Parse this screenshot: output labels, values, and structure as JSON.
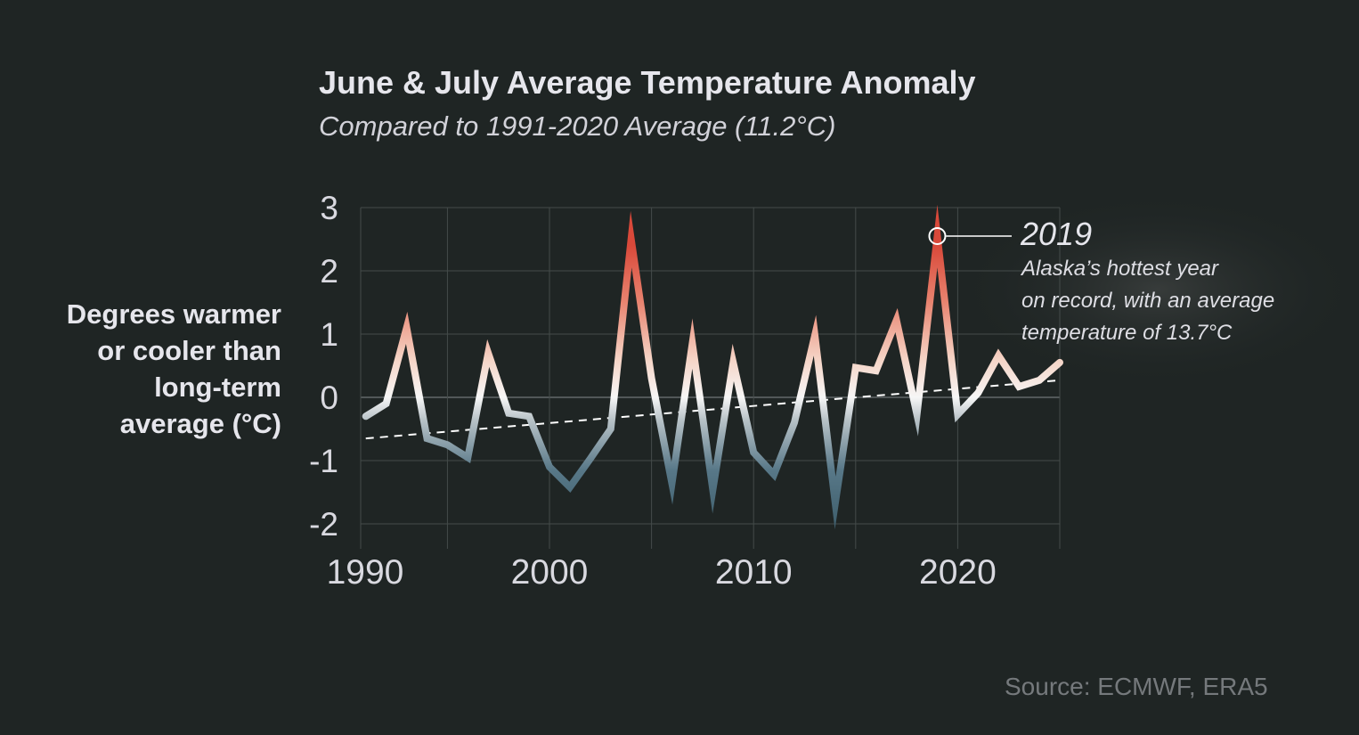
{
  "chart_data": {
    "type": "line",
    "title": "June & July Average Temperature Anomaly",
    "subtitle": "Compared to 1991-2020 Average (11.2°C)",
    "ylabel_lines": [
      "Degrees warmer",
      "or cooler than",
      "long-term",
      "average (°C)"
    ],
    "xlabel": "",
    "xlim": [
      1990,
      2025
    ],
    "ylim": [
      -2,
      3
    ],
    "x_ticks": [
      1990,
      2000,
      2010,
      2020
    ],
    "y_ticks": [
      3,
      2,
      1,
      0,
      -1,
      -2
    ],
    "y_tick_labels": [
      "3",
      "2",
      "1",
      "0",
      "-1",
      "-2"
    ],
    "grid": true,
    "series": [
      {
        "x": [
          1991,
          1992,
          1993,
          1994,
          1995,
          1996,
          1997,
          1998,
          1999,
          2000,
          2001,
          2002,
          2003,
          2004,
          2005,
          2006,
          2007,
          2008,
          2009,
          2010,
          2011,
          2012,
          2013,
          2014,
          2015,
          2016,
          2017,
          2018,
          2019,
          2020,
          2021,
          2022,
          2023,
          2024,
          2025
        ],
        "values": [
          -0.3,
          -0.1,
          1.1,
          -0.65,
          -0.75,
          -0.95,
          0.7,
          -0.25,
          -0.3,
          -1.1,
          -1.42,
          -0.97,
          -0.5,
          2.5,
          0.3,
          -1.36,
          0.85,
          -1.46,
          0.55,
          -0.87,
          -1.22,
          -0.4,
          0.98,
          -1.67,
          0.47,
          0.42,
          1.22,
          -0.27,
          2.55,
          -0.27,
          0.07,
          0.66,
          0.17,
          0.27,
          0.55
        ]
      }
    ],
    "trend": {
      "style": "dashed",
      "x": [
        1991,
        2025
      ],
      "values": [
        -0.65,
        0.27
      ]
    },
    "annotation": {
      "x": 2019,
      "y": 2.55,
      "label": "2019",
      "lines": [
        "Alaska’s hottest year",
        "on record, with an average",
        "temperature of 13.7°C"
      ]
    },
    "colors": {
      "warm": "#d94a3b",
      "neutral": "#f5f5f5",
      "cool": "#4d6e7d",
      "grid": "#444b4a",
      "background": "#1f2524"
    },
    "source": "Source: ECMWF, ERA5"
  }
}
